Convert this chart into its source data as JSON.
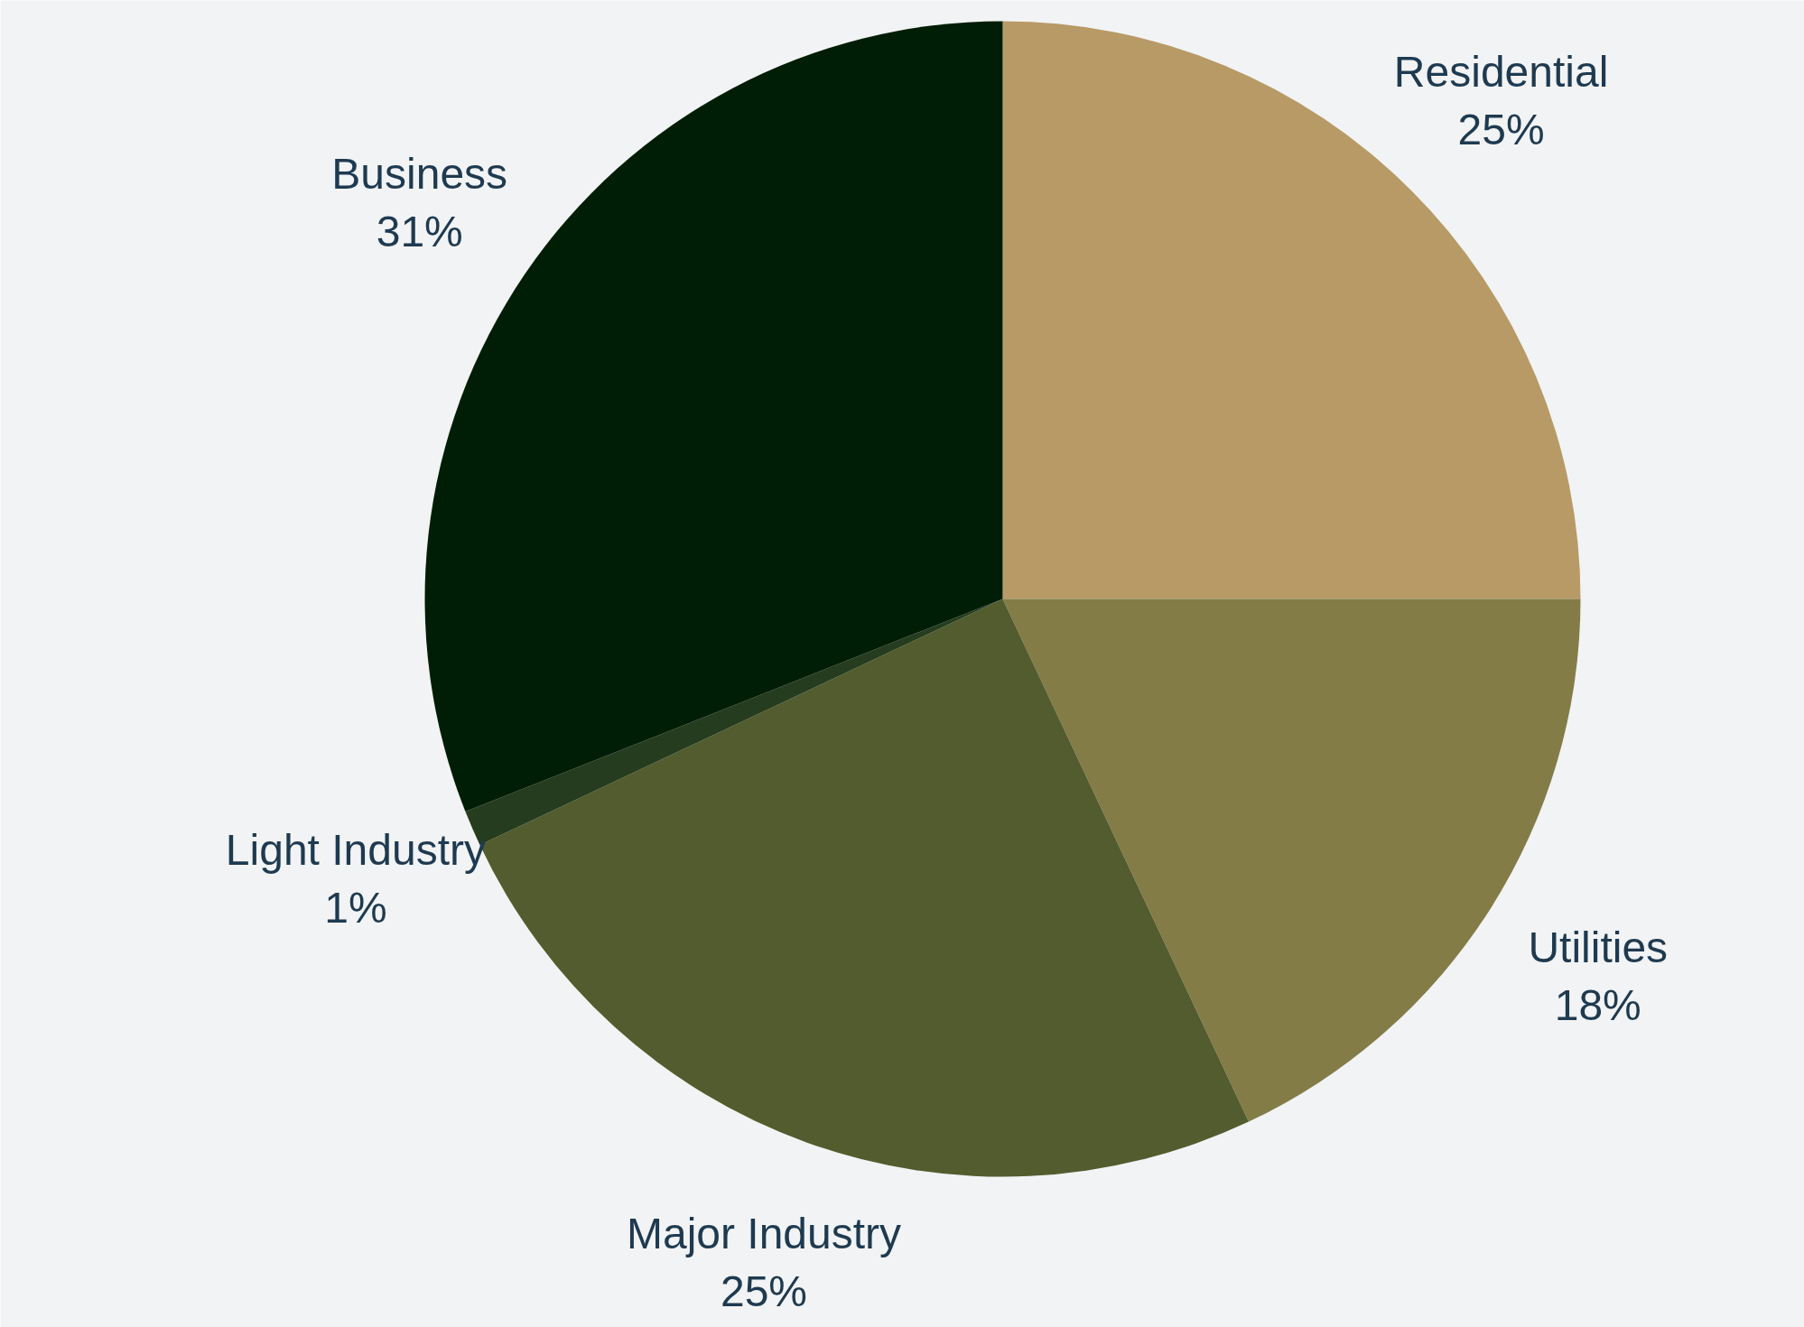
{
  "chart_data": {
    "type": "pie",
    "categories": [
      "Residential",
      "Utilities",
      "Major Industry",
      "Light Industry",
      "Business"
    ],
    "values": [
      25,
      18,
      25,
      1,
      31
    ],
    "value_labels": [
      "25%",
      "18%",
      "25%",
      "1%",
      "31%"
    ],
    "colors": [
      "#b89a66",
      "#837c47",
      "#525c2e",
      "#263c1e",
      "#001e05"
    ],
    "legend": false
  }
}
